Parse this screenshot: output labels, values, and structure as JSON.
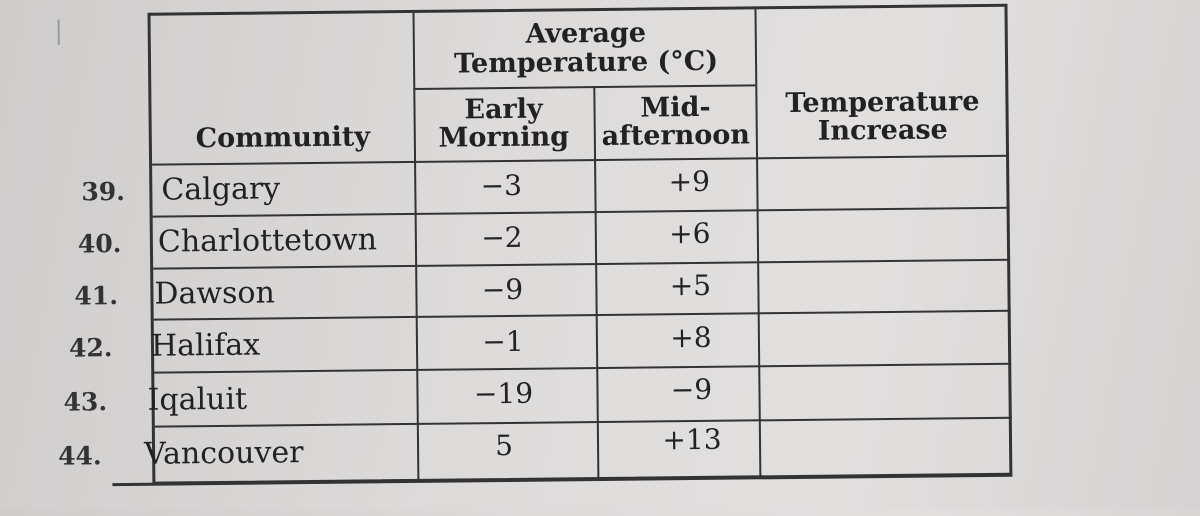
{
  "table": {
    "headers": {
      "community": "Community",
      "group": "Average Temperature (°C)",
      "early_morning": "Early Morning",
      "mid_afternoon": "Mid- afternoon",
      "increase": "Temperature Increase"
    },
    "rows": [
      {
        "num": "39.",
        "community": "Calgary",
        "early": "−3",
        "mid": "+9",
        "increase": ""
      },
      {
        "num": "40.",
        "community": "Charlottetown",
        "early": "−2",
        "mid": "+6",
        "increase": ""
      },
      {
        "num": "41.",
        "community": "Dawson",
        "early": "−9",
        "mid": "+5",
        "increase": ""
      },
      {
        "num": "42.",
        "community": "Halifax",
        "early": "−1",
        "mid": "+8",
        "increase": ""
      },
      {
        "num": "43.",
        "community": "Iqaluit",
        "early": "−19",
        "mid": "−9",
        "increase": ""
      },
      {
        "num": "44.",
        "community": "Vancouver",
        "early": "5",
        "mid": "+13",
        "increase": ""
      }
    ]
  }
}
